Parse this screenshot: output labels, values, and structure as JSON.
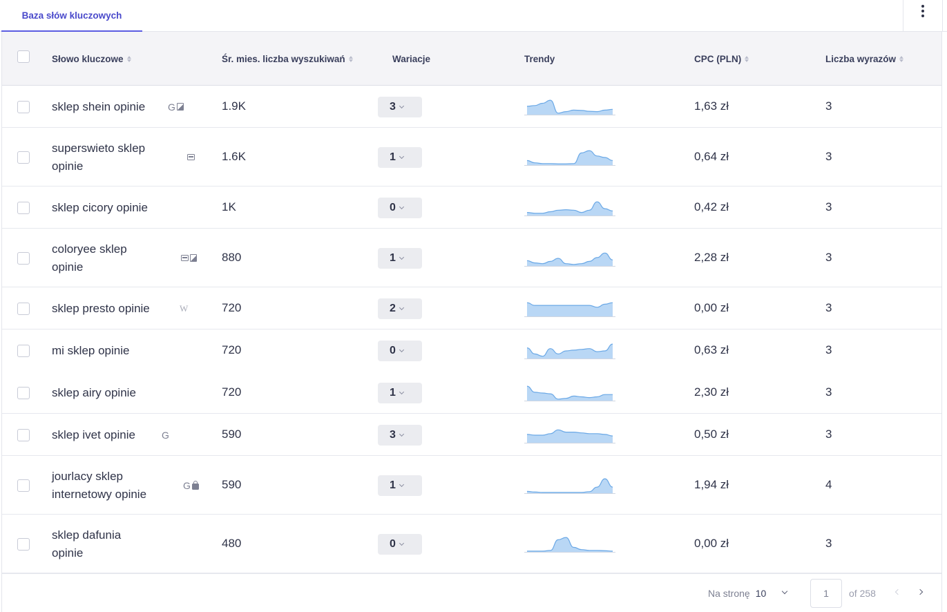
{
  "tabs": {
    "active": "Baza słów kluczowych"
  },
  "table": {
    "headers": {
      "keyword": "Słowo kluczowe",
      "volume": "Śr. mies. liczba wyszukiwań",
      "variations": "Wariacje",
      "trends": "Trendy",
      "cpc": "CPC (PLN)",
      "words": "Liczba wyrazów"
    },
    "rows": [
      {
        "keyword_line1": "sklep shein opinie",
        "keyword_line2": "",
        "icons": [
          "google-icon",
          "image-icon"
        ],
        "volume": "1.9K",
        "variations": "3",
        "trend": [
          0.55,
          0.6,
          0.75,
          0.95,
          0.1,
          0.2,
          0.3,
          0.28,
          0.22,
          0.2,
          0.3,
          0.35
        ],
        "cpc": "1,63 zł",
        "words": "3"
      },
      {
        "keyword_line1": "superswieto sklep",
        "keyword_line2": "opinie",
        "icons": [
          "ad-icon"
        ],
        "volume": "1.6K",
        "variations": "1",
        "trend": [
          0.3,
          0.15,
          0.1,
          0.1,
          0.08,
          0.08,
          0.1,
          0.8,
          0.95,
          0.6,
          0.5,
          0.3
        ],
        "cpc": "0,64 zł",
        "words": "3"
      },
      {
        "keyword_line1": "sklep cicory opinie",
        "keyword_line2": "",
        "icons": [],
        "volume": "1K",
        "variations": "0",
        "trend": [
          0.2,
          0.15,
          0.15,
          0.25,
          0.35,
          0.38,
          0.35,
          0.2,
          0.35,
          0.9,
          0.45,
          0.3
        ],
        "cpc": "0,42 zł",
        "words": "3"
      },
      {
        "keyword_line1": "coloryee sklep",
        "keyword_line2": "opinie",
        "icons": [
          "ad-icon",
          "image-icon"
        ],
        "volume": "880",
        "variations": "1",
        "trend": [
          0.35,
          0.2,
          0.15,
          0.3,
          0.5,
          0.15,
          0.1,
          0.15,
          0.3,
          0.55,
          0.85,
          0.4
        ],
        "cpc": "2,28 zł",
        "words": "3"
      },
      {
        "keyword_line1": "sklep presto opinie",
        "keyword_line2": "",
        "icons": [
          "wikipedia-icon"
        ],
        "volume": "720",
        "variations": "2",
        "trend": [
          0.9,
          0.72,
          0.72,
          0.72,
          0.72,
          0.72,
          0.72,
          0.72,
          0.72,
          0.6,
          0.8,
          0.9
        ],
        "cpc": "0,00 zł",
        "words": "3"
      },
      {
        "keyword_line1": "mi sklep opinie",
        "keyword_line2": "",
        "icons": [],
        "volume": "720",
        "variations": "0",
        "trend": [
          0.7,
          0.3,
          0.15,
          0.65,
          0.3,
          0.5,
          0.55,
          0.6,
          0.65,
          0.45,
          0.5,
          0.95
        ],
        "cpc": "0,63 zł",
        "words": "3"
      },
      {
        "keyword_line1": "sklep airy opinie",
        "keyword_line2": "",
        "icons": [],
        "volume": "720",
        "variations": "1",
        "trend": [
          0.95,
          0.55,
          0.5,
          0.45,
          0.1,
          0.15,
          0.3,
          0.25,
          0.2,
          0.25,
          0.4,
          0.4
        ],
        "cpc": "2,30 zł",
        "words": "3"
      },
      {
        "keyword_line1": "sklep ivet opinie",
        "keyword_line2": "",
        "icons": [
          "google-icon"
        ],
        "volume": "590",
        "variations": "3",
        "trend": [
          0.55,
          0.5,
          0.5,
          0.6,
          0.85,
          0.7,
          0.7,
          0.65,
          0.6,
          0.6,
          0.55,
          0.45
        ],
        "cpc": "0,50 zł",
        "words": "3"
      },
      {
        "keyword_line1": "jourlacy sklep",
        "keyword_line2": "internetowy opinie",
        "icons": [
          "google-icon",
          "bag-icon"
        ],
        "volume": "590",
        "variations": "1",
        "trend": [
          0.12,
          0.08,
          0.05,
          0.05,
          0.05,
          0.05,
          0.05,
          0.05,
          0.1,
          0.4,
          0.95,
          0.4
        ],
        "cpc": "1,94 zł",
        "words": "4"
      },
      {
        "keyword_line1": "sklep dafunia",
        "keyword_line2": "opinie",
        "icons": [],
        "volume": "480",
        "variations": "0",
        "trend": [
          0.05,
          0.05,
          0.05,
          0.1,
          0.8,
          0.95,
          0.3,
          0.15,
          0.1,
          0.1,
          0.08,
          0.05
        ],
        "cpc": "0,00 zł",
        "words": "3"
      }
    ]
  },
  "pagination": {
    "per_page_label": "Na stronę",
    "per_page_value": "10",
    "current_page": "1",
    "of_label": "of 258"
  },
  "colors": {
    "accent": "#5b5ce2",
    "trend_fill": "#b9d7f5",
    "trend_stroke": "#6aa8e6"
  }
}
